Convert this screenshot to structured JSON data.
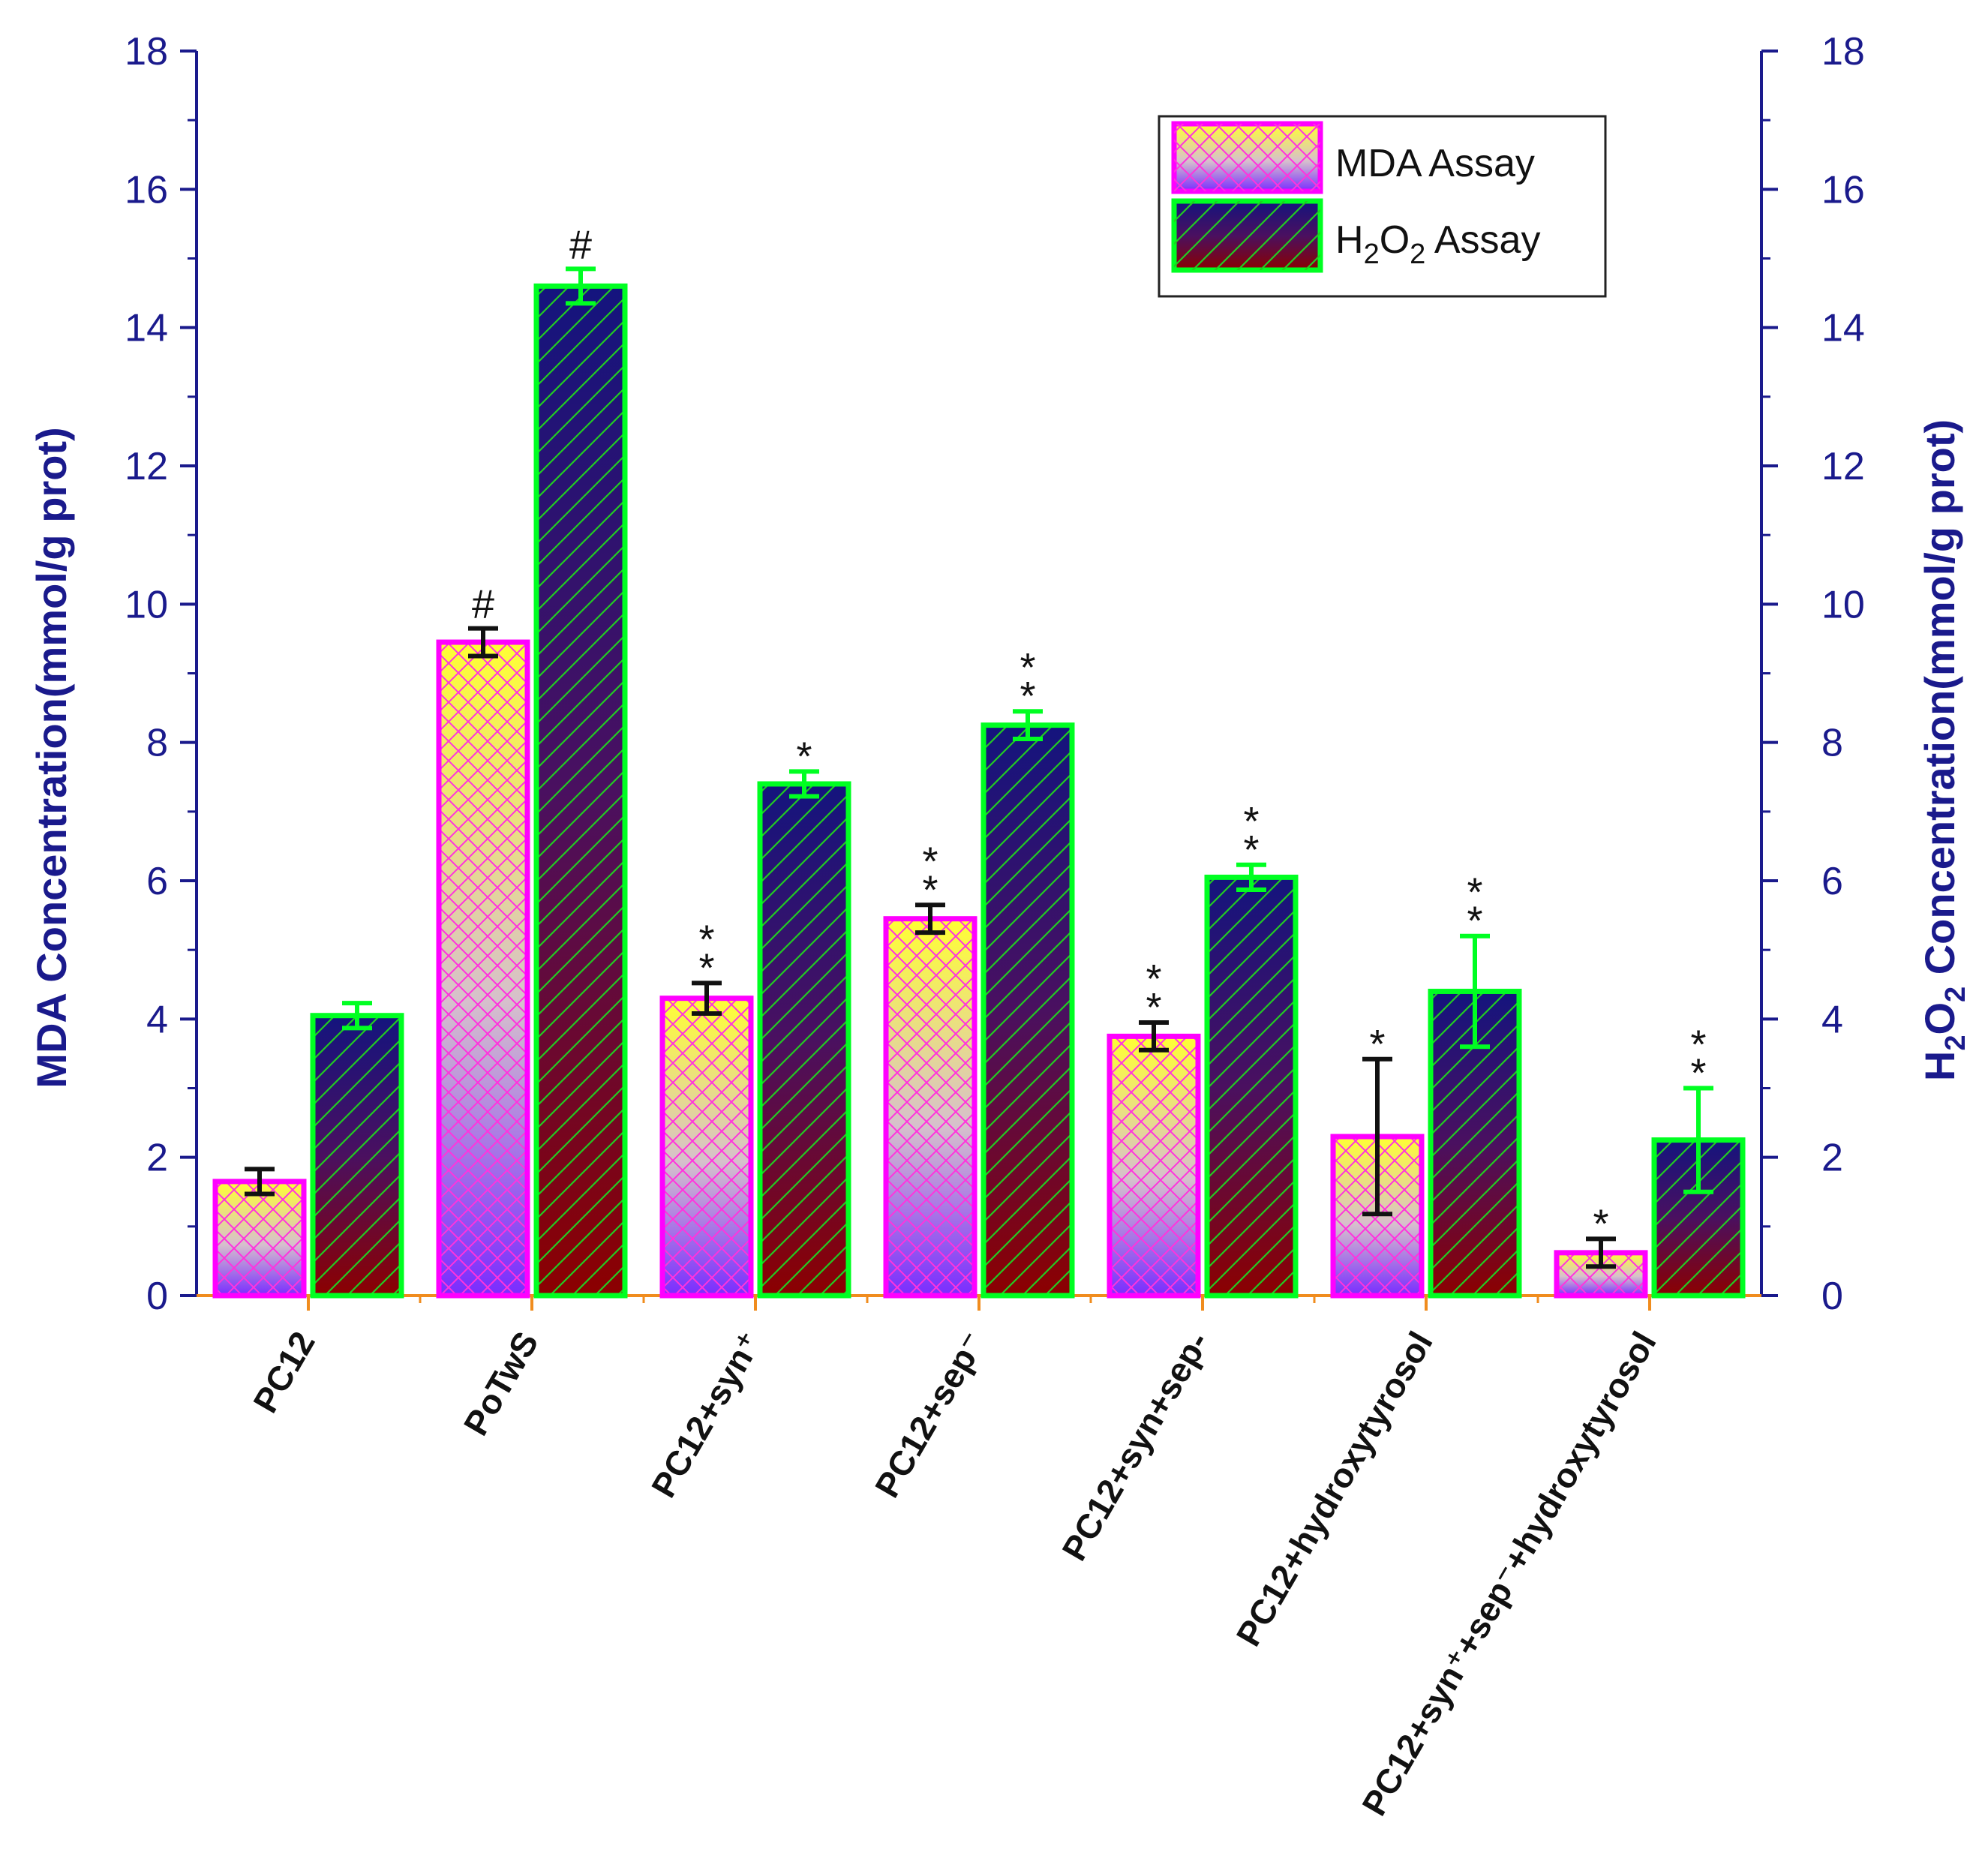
{
  "chart_data": {
    "type": "bar",
    "categories": [
      "PC12",
      "PoTwS",
      "PC12+syn⁺",
      "PC12+sep⁻",
      "PC12+syn+sep-",
      "PC12+hydroxytyrosol",
      "PC12+syn⁺+sep⁻+hydroxytyrosol"
    ],
    "series": [
      {
        "name": "MDA Assay",
        "values": [
          1.65,
          9.45,
          4.3,
          5.45,
          3.75,
          2.3,
          0.62
        ],
        "errors": [
          0.18,
          0.2,
          0.22,
          0.2,
          0.2,
          1.12,
          0.2
        ],
        "significance": [
          "",
          "#",
          "**",
          "**",
          "**",
          "*",
          "*"
        ]
      },
      {
        "name": "H₂O₂ Assay",
        "values": [
          4.05,
          14.6,
          7.4,
          8.25,
          6.05,
          4.4,
          2.25
        ],
        "errors": [
          0.18,
          0.25,
          0.18,
          0.2,
          0.18,
          0.8,
          0.75
        ],
        "significance": [
          "",
          "#",
          "*",
          "**",
          "**",
          "**",
          "**"
        ]
      }
    ],
    "ylabel_left": "MDA Concentration(mmol/g prot)",
    "ylabel_right": {
      "prefix": "H",
      "sub1": "2",
      "mid": "O",
      "sub2": "2",
      "suffix": " Concentration(mmol/g prot)"
    },
    "ylim": [
      0,
      18
    ],
    "yticks": [
      "0",
      "2",
      "4",
      "6",
      "8",
      "10",
      "12",
      "14",
      "16",
      "18"
    ],
    "legend": {
      "position": "top-right",
      "mda_label": "MDA Assay",
      "h2o2": {
        "prefix": "H",
        "sub1": "2",
        "mid": "O",
        "sub2": "2",
        "suffix": " Assay"
      }
    },
    "grid": false
  },
  "colors": {
    "axis": "#1a1a8c",
    "x_axis": "#f08c1e",
    "mda_border": "#ff00ff",
    "h2o2_border": "#00ff22",
    "mda_top": "#ffff33",
    "mda_mid": "#d0b8c8",
    "mda_bottom": "#7a2cff",
    "h2o2_top": "#1a1a8c",
    "h2o2_bottom": "#8c0000"
  }
}
